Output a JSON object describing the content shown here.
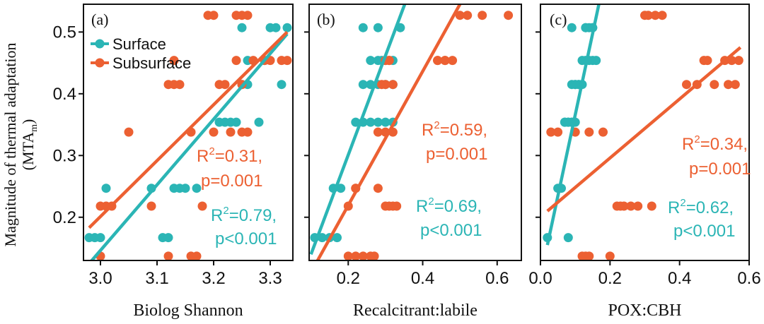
{
  "figure": {
    "ylabel_line1": "Magnitude of thermal adaptation",
    "ylabel_line2_main": "(MTA",
    "ylabel_line2_sub": "m",
    "ylabel_line2_close": ")",
    "yticks": [
      "0.2",
      "0.3",
      "0.4",
      "0.5"
    ]
  },
  "colors": {
    "surface": "#2bb5b5",
    "subsurface": "#ec6032"
  },
  "legend": {
    "surface": "Surface",
    "subsurface": "Subsurface"
  },
  "chart_data": [
    {
      "type": "scatter",
      "panel": "(a)",
      "xlabel": "Biolog Shannon",
      "xlim": [
        2.97,
        3.34
      ],
      "ylim": [
        0.13,
        0.545
      ],
      "xticks": [
        "3.0",
        "3.1",
        "3.2",
        "3.3"
      ],
      "xtick_values": [
        3.0,
        3.1,
        3.2,
        3.3
      ],
      "series": [
        {
          "name": "Surface",
          "x": [
            2.98,
            2.99,
            3.0,
            3.01,
            3.09,
            3.11,
            3.12,
            3.13,
            3.14,
            3.15,
            3.17,
            3.21,
            3.22,
            3.23,
            3.24,
            3.25,
            3.26,
            3.28,
            3.29,
            3.3,
            3.31,
            3.25,
            3.26,
            3.32,
            3.33
          ],
          "y": [
            0.167,
            0.167,
            0.167,
            0.247,
            0.247,
            0.167,
            0.167,
            0.247,
            0.247,
            0.247,
            0.247,
            0.354,
            0.354,
            0.354,
            0.354,
            0.415,
            0.454,
            0.354,
            0.454,
            0.507,
            0.507,
            0.507,
            0.415,
            0.415,
            0.507
          ],
          "fit": {
            "x": [
              2.98,
              3.33
            ],
            "y": [
              0.125,
              0.497
            ],
            "r2_label": "R²=0.79,",
            "p_label": "p<0.001"
          }
        },
        {
          "name": "Subsurface",
          "x": [
            3.0,
            3.01,
            3.0,
            3.02,
            3.05,
            3.09,
            3.12,
            3.12,
            3.13,
            3.13,
            3.14,
            3.16,
            3.16,
            3.17,
            3.18,
            3.2,
            3.21,
            3.22,
            3.23,
            3.24,
            3.25,
            3.25,
            3.26,
            3.27,
            3.29,
            3.3,
            3.32,
            3.33,
            3.19,
            3.2,
            3.24,
            3.25,
            3.26
          ],
          "y": [
            0.218,
            0.218,
            0.137,
            0.218,
            0.338,
            0.218,
            0.137,
            0.415,
            0.454,
            0.415,
            0.415,
            0.338,
            0.137,
            0.137,
            0.218,
            0.338,
            0.415,
            0.415,
            0.338,
            0.454,
            0.415,
            0.338,
            0.338,
            0.454,
            0.454,
            0.454,
            0.454,
            0.454,
            0.527,
            0.527,
            0.527,
            0.527,
            0.527
          ],
          "fit": {
            "x": [
              2.98,
              3.33
            ],
            "y": [
              0.183,
              0.5
            ],
            "r2_label": "R²=0.31,",
            "p_label": "p=0.001"
          }
        }
      ]
    },
    {
      "type": "scatter",
      "panel": "(b)",
      "xlabel": "Recalcitrant:labile",
      "xlim": [
        0.095,
        0.665
      ],
      "ylim": [
        0.13,
        0.545
      ],
      "xticks": [
        "0.2",
        "0.4",
        "0.6"
      ],
      "xtick_values": [
        0.2,
        0.4,
        0.6
      ],
      "series": [
        {
          "name": "Surface",
          "x": [
            0.11,
            0.13,
            0.15,
            0.17,
            0.16,
            0.18,
            0.22,
            0.24,
            0.26,
            0.28,
            0.3,
            0.32,
            0.24,
            0.26,
            0.28,
            0.3,
            0.32,
            0.24,
            0.28,
            0.3,
            0.32,
            0.34,
            0.26,
            0.28,
            0.29
          ],
          "y": [
            0.167,
            0.167,
            0.167,
            0.167,
            0.247,
            0.247,
            0.354,
            0.354,
            0.354,
            0.354,
            0.354,
            0.354,
            0.415,
            0.415,
            0.415,
            0.415,
            0.415,
            0.507,
            0.507,
            0.454,
            0.454,
            0.507,
            0.454,
            0.454,
            0.454
          ],
          "fit": {
            "x": [
              0.1,
              0.355
            ],
            "y": [
              0.14,
              0.55
            ],
            "r2_label": "R²=0.69,",
            "p_label": "p<0.001"
          }
        },
        {
          "name": "Subsurface",
          "x": [
            0.2,
            0.22,
            0.24,
            0.26,
            0.27,
            0.3,
            0.31,
            0.32,
            0.33,
            0.2,
            0.22,
            0.28,
            0.3,
            0.32,
            0.29,
            0.3,
            0.31,
            0.3,
            0.31,
            0.32,
            0.44,
            0.46,
            0.48,
            0.44,
            0.46,
            0.52,
            0.56,
            0.63,
            0.5,
            0.22,
            0.28
          ],
          "y": [
            0.137,
            0.137,
            0.137,
            0.137,
            0.137,
            0.218,
            0.218,
            0.218,
            0.218,
            0.218,
            0.247,
            0.338,
            0.338,
            0.338,
            0.415,
            0.415,
            0.454,
            0.454,
            0.454,
            0.415,
            0.454,
            0.454,
            0.454,
            0.454,
            0.454,
            0.527,
            0.527,
            0.527,
            0.527,
            0.247,
            0.247
          ],
          "fit": {
            "x": [
              0.115,
              0.5
            ],
            "y": [
              0.127,
              0.545
            ],
            "r2_label": "R²=0.59,",
            "p_label": "p=0.001"
          }
        }
      ]
    },
    {
      "type": "scatter",
      "panel": "(c)",
      "xlabel": "POX:CBH",
      "xlim": [
        0.0,
        0.6
      ],
      "ylim": [
        0.13,
        0.545
      ],
      "xticks": [
        "0.0",
        "0.2",
        "0.4",
        "0.6"
      ],
      "xtick_values": [
        0.0,
        0.2,
        0.4,
        0.6
      ],
      "series": [
        {
          "name": "Surface",
          "x": [
            0.02,
            0.05,
            0.06,
            0.07,
            0.08,
            0.09,
            0.1,
            0.11,
            0.12,
            0.13,
            0.14,
            0.15,
            0.16,
            0.09,
            0.1,
            0.11,
            0.12,
            0.07,
            0.08,
            0.09,
            0.1,
            0.08,
            0.13,
            0.14,
            0.15,
            0.09,
            0.13,
            0.15
          ],
          "y": [
            0.167,
            0.247,
            0.247,
            0.354,
            0.354,
            0.354,
            0.415,
            0.415,
            0.454,
            0.454,
            0.454,
            0.454,
            0.454,
            0.354,
            0.354,
            0.415,
            0.415,
            0.354,
            0.354,
            0.415,
            0.415,
            0.167,
            0.507,
            0.507,
            0.507,
            0.507,
            0.507,
            0.507
          ],
          "fit": {
            "x": [
              0.02,
              0.168
            ],
            "y": [
              0.155,
              0.545
            ],
            "r2_label": "R²=0.62,",
            "p_label": "p<0.001"
          }
        },
        {
          "name": "Subsurface",
          "x": [
            0.03,
            0.05,
            0.1,
            0.14,
            0.18,
            0.22,
            0.23,
            0.26,
            0.28,
            0.32,
            0.31,
            0.33,
            0.35,
            0.42,
            0.45,
            0.47,
            0.48,
            0.5,
            0.53,
            0.55,
            0.57,
            0.54,
            0.56,
            0.12,
            0.13,
            0.14,
            0.2,
            0.24,
            0.3
          ],
          "y": [
            0.338,
            0.338,
            0.338,
            0.338,
            0.338,
            0.218,
            0.218,
            0.218,
            0.218,
            0.218,
            0.527,
            0.527,
            0.527,
            0.415,
            0.415,
            0.454,
            0.454,
            0.415,
            0.454,
            0.454,
            0.454,
            0.415,
            0.415,
            0.137,
            0.137,
            0.137,
            0.137,
            0.218,
            0.527
          ],
          "fit": {
            "x": [
              0.02,
              0.575
            ],
            "y": [
              0.21,
              0.475
            ],
            "r2_label": "R²=0.34,",
            "p_label": "p=0.001"
          }
        }
      ]
    }
  ]
}
